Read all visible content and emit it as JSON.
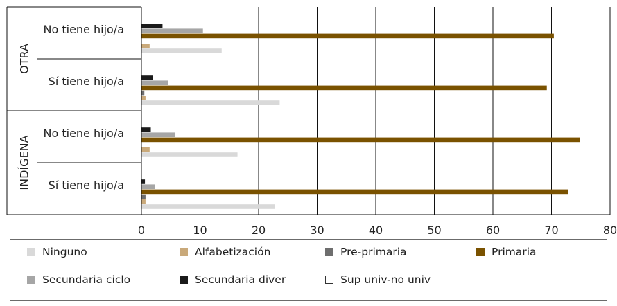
{
  "chart_data": {
    "type": "bar",
    "orientation": "horizontal",
    "xlim": [
      0,
      80
    ],
    "xticks": [
      0,
      10,
      20,
      30,
      40,
      50,
      60,
      70,
      80
    ],
    "grid": true,
    "legend_position": "bottom",
    "groups": [
      {
        "label": "OTRA",
        "rows": [
          "No tiene hijo/a",
          "Sí tiene hijo/a"
        ]
      },
      {
        "label": "INDÍGENA",
        "rows": [
          "No tiene hijo/a",
          "Sí tiene hijo/a"
        ]
      }
    ],
    "categories": [
      "OTRA - No tiene hijo/a",
      "OTRA - Sí tiene hijo/a",
      "INDÍGENA - No tiene hijo/a",
      "INDÍGENA - Sí tiene hijo/a"
    ],
    "series": [
      {
        "name": "Ninguno",
        "color": "#d9d9d9",
        "values": [
          13.7,
          23.6,
          16.4,
          22.8
        ]
      },
      {
        "name": "Alfabetización",
        "color": "#c9a97a",
        "values": [
          1.4,
          0.7,
          1.4,
          0.7
        ]
      },
      {
        "name": "Pre-primaria",
        "color": "#6e6e6e",
        "values": [
          0.0,
          0.5,
          0.0,
          0.7
        ]
      },
      {
        "name": "Primaria",
        "color": "#7a5200",
        "values": [
          70.4,
          69.2,
          74.9,
          72.9
        ]
      },
      {
        "name": "Secundaria ciclo",
        "color": "#a6a6a6",
        "values": [
          10.5,
          4.6,
          5.8,
          2.3
        ]
      },
      {
        "name": "Secundaria diver",
        "color": "#1a1a1a",
        "values": [
          3.6,
          1.9,
          1.6,
          0.6
        ]
      },
      {
        "name": "Sup univ-no univ",
        "color": "#ffffff",
        "values": [
          0,
          0,
          0,
          0
        ]
      }
    ]
  }
}
